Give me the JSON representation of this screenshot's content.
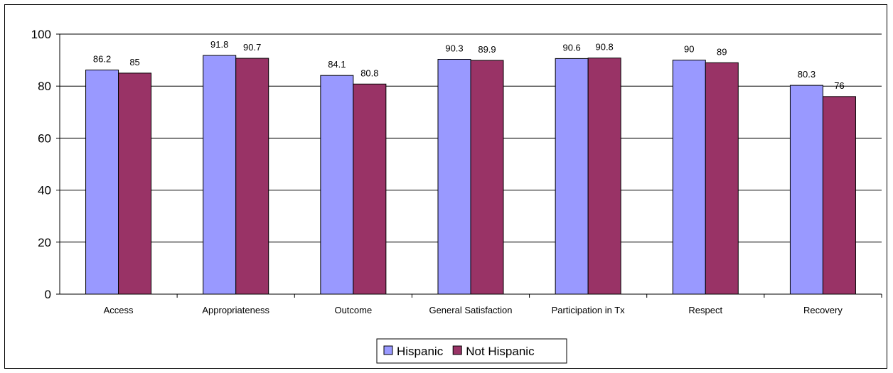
{
  "chart_data": {
    "type": "bar",
    "title": "",
    "xlabel": "",
    "ylabel": "",
    "ylim": [
      0,
      100
    ],
    "yticks": [
      0,
      20,
      40,
      60,
      80,
      100
    ],
    "grid": true,
    "legend_position": "bottom",
    "categories": [
      "Access",
      "Appropriateness",
      "Outcome",
      "General Satisfaction",
      "Participation in Tx",
      "Respect",
      "Recovery"
    ],
    "series": [
      {
        "name": "Hispanic",
        "color": "#9999ff",
        "values": [
          86.2,
          91.8,
          84.1,
          90.3,
          90.6,
          90,
          80.3
        ]
      },
      {
        "name": "Not Hispanic",
        "color": "#993366",
        "values": [
          85,
          90.7,
          80.8,
          89.9,
          90.8,
          89,
          76
        ]
      }
    ]
  }
}
